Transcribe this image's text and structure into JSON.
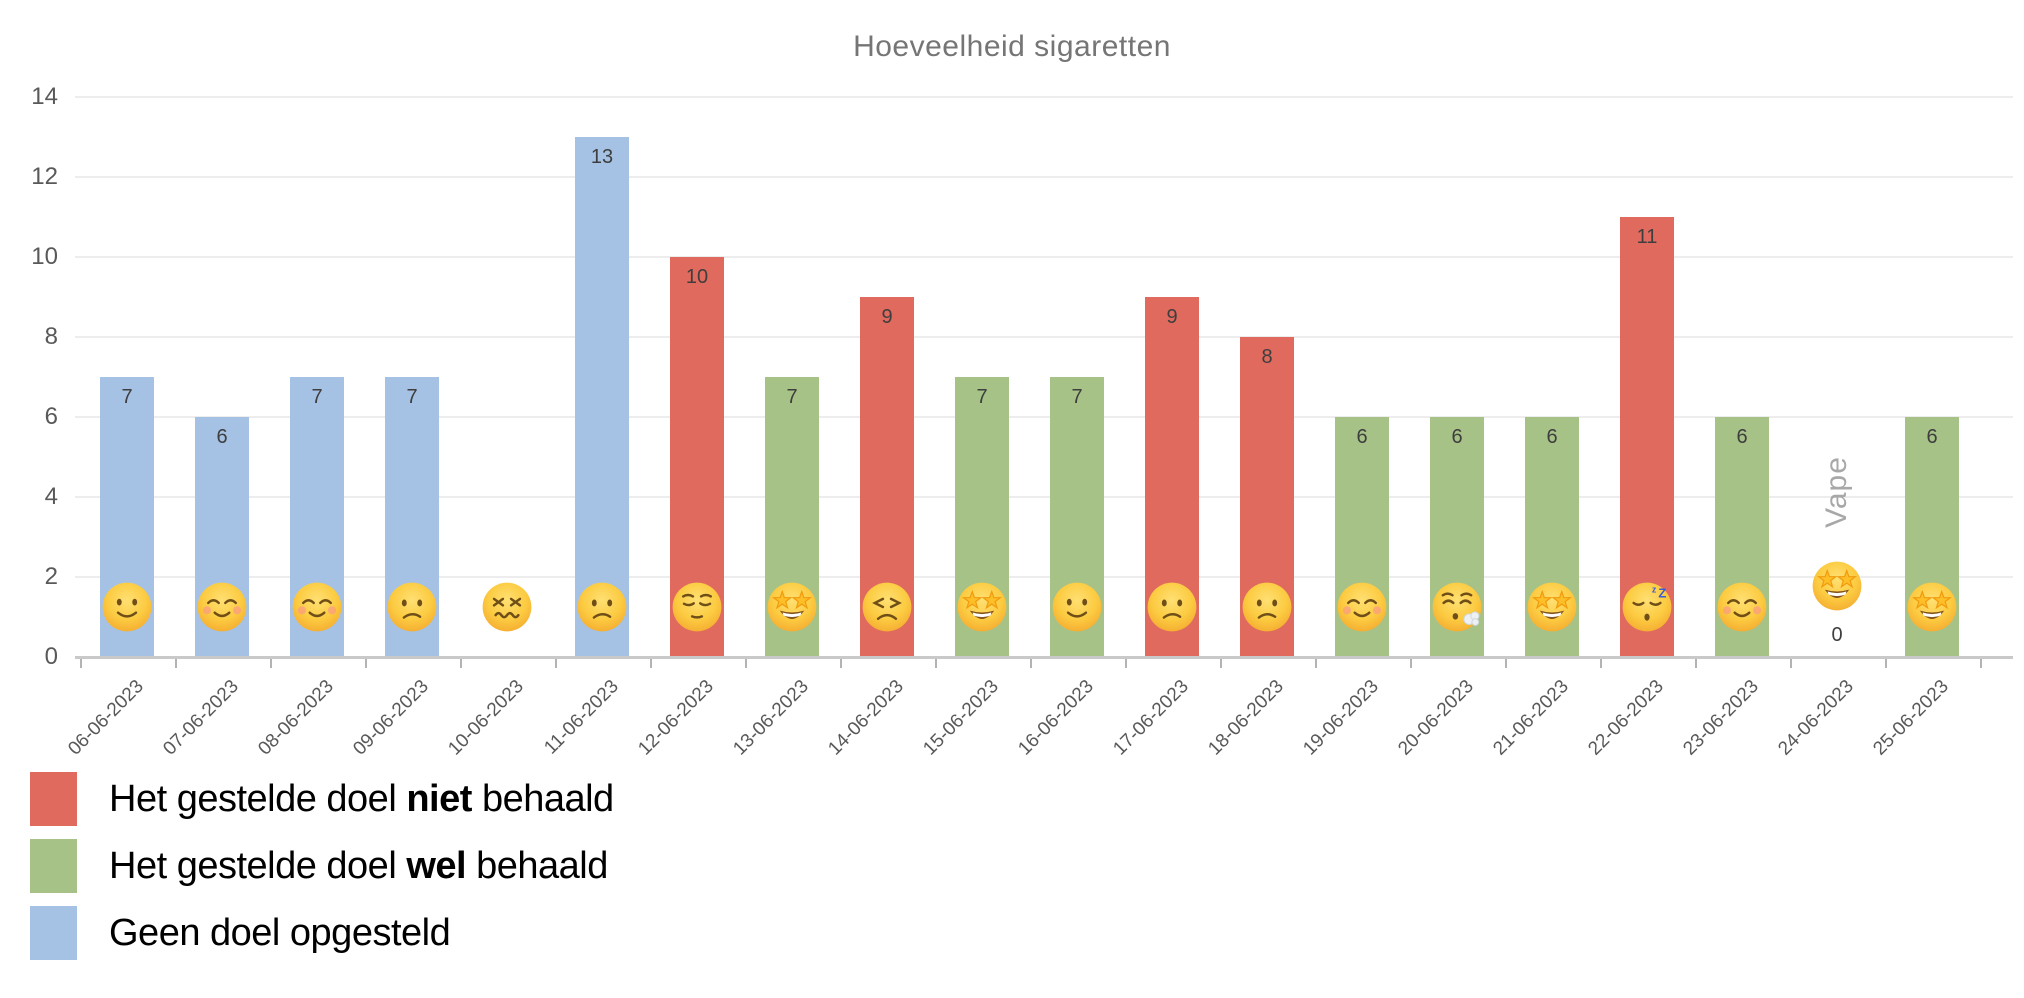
{
  "chart_data": {
    "type": "bar",
    "title": "Hoeveelheid sigaretten",
    "xlabel": "",
    "ylabel": "",
    "ylim": [
      0,
      14
    ],
    "yticks": [
      0,
      2,
      4,
      6,
      8,
      10,
      12,
      14
    ],
    "grid": true,
    "legend_position": "bottom-left",
    "colors": {
      "niet": "#e06a5e",
      "wel": "#a6c287",
      "geen": "#a5c2e4"
    },
    "categories": [
      "06-06-2023",
      "07-06-2023",
      "08-06-2023",
      "09-06-2023",
      "10-06-2023",
      "11-06-2023",
      "12-06-2023",
      "13-06-2023",
      "14-06-2023",
      "15-06-2023",
      "16-06-2023",
      "17-06-2023",
      "18-06-2023",
      "19-06-2023",
      "20-06-2023",
      "21-06-2023",
      "22-06-2023",
      "23-06-2023",
      "24-06-2023",
      "25-06-2023"
    ],
    "values": [
      7,
      6,
      7,
      7,
      null,
      13,
      10,
      7,
      9,
      7,
      7,
      9,
      8,
      6,
      6,
      6,
      11,
      6,
      0,
      6
    ],
    "bar_value_labels": [
      "7",
      "6",
      "7",
      "7",
      "",
      "13",
      "10",
      "7",
      "9",
      "7",
      "7",
      "9",
      "8",
      "6",
      "6",
      "6",
      "11",
      "6",
      "0",
      "6"
    ],
    "goal_status": [
      "geen",
      "geen",
      "geen",
      "geen",
      null,
      "geen",
      "niet",
      "wel",
      "niet",
      "wel",
      "wel",
      "niet",
      "niet",
      "wel",
      "wel",
      "wel",
      "niet",
      "wel",
      null,
      "wel"
    ],
    "emojis": [
      {
        "char": "🙂",
        "name": "slightly-smiling-face"
      },
      {
        "char": "☺️",
        "name": "smiling-face-with-rosy-cheeks"
      },
      {
        "char": "☺️",
        "name": "smiling-face-with-rosy-cheeks"
      },
      {
        "char": "😕",
        "name": "confused-face"
      },
      {
        "char": "😖",
        "name": "confounded-face"
      },
      {
        "char": "😕",
        "name": "confused-face"
      },
      {
        "char": "😔",
        "name": "pensive-face"
      },
      {
        "char": "🤩",
        "name": "star-struck"
      },
      {
        "char": "😣",
        "name": "persevering-face"
      },
      {
        "char": "🤩",
        "name": "star-struck"
      },
      {
        "char": "🙂",
        "name": "slightly-smiling-face"
      },
      {
        "char": "😕",
        "name": "confused-face"
      },
      {
        "char": "😕",
        "name": "confused-face"
      },
      {
        "char": "☺️",
        "name": "smiling-face-with-rosy-cheeks"
      },
      {
        "char": "😮‍💨",
        "name": "face-exhaling"
      },
      {
        "char": "🤩",
        "name": "star-struck"
      },
      {
        "char": "😴",
        "name": "sleeping-face"
      },
      {
        "char": "☺️",
        "name": "smiling-face-with-rosy-cheeks"
      },
      {
        "char": "🤩",
        "name": "star-struck"
      },
      {
        "char": "🤩",
        "name": "star-struck"
      }
    ],
    "annotations": [
      {
        "text": "Vape",
        "category": "24-06-2023",
        "rotation": -90
      }
    ],
    "legend": [
      {
        "key": "niet",
        "text_parts": [
          "Het gestelde doel ",
          "niet",
          " behaald"
        ]
      },
      {
        "key": "wel",
        "text_parts": [
          "Het gestelde doel ",
          "wel",
          " behaald"
        ]
      },
      {
        "key": "geen",
        "text_parts": [
          "Geen doel opgesteld",
          "",
          ""
        ]
      }
    ]
  }
}
